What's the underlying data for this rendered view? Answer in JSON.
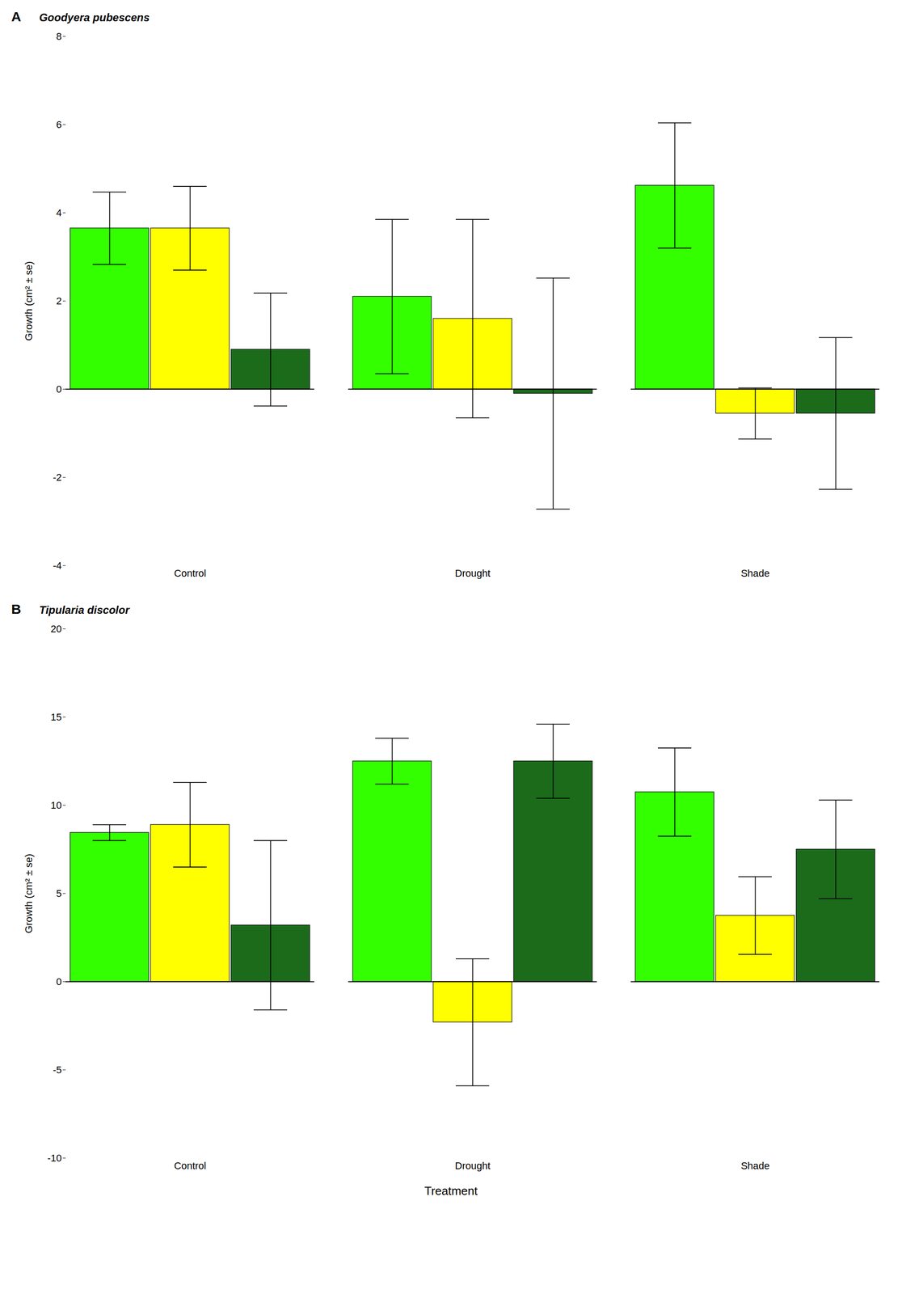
{
  "chart_data": [
    {
      "type": "bar",
      "title": "Goodyera pubescens",
      "annotations": [
        {
          "text": "A"
        }
      ],
      "y_label": "Growth (cm² ± se)",
      "categories": [
        "Control",
        "Drought",
        "Shade"
      ],
      "series": [
        {
          "color": "#33FF00",
          "values": [
            3.65,
            2.1,
            4.62
          ],
          "errors": [
            0.82,
            1.75,
            1.42
          ]
        },
        {
          "color": "#FFFF00",
          "values": [
            3.65,
            1.6,
            -0.55
          ],
          "errors": [
            0.95,
            2.25,
            0.58
          ]
        },
        {
          "color": "#1B6B1B",
          "values": [
            0.9,
            -0.1,
            -0.55
          ],
          "errors": [
            1.28,
            2.62,
            1.72
          ]
        }
      ],
      "ylim": [
        -4,
        8
      ],
      "yticks": [
        -4,
        -2,
        0,
        2,
        4,
        6,
        8
      ],
      "grid": false
    },
    {
      "type": "bar",
      "title": "Tipularia discolor",
      "annotations": [
        {
          "text": "B"
        }
      ],
      "y_label": "Growth (cm² ± se)",
      "x_label": "Treatment",
      "categories": [
        "Control",
        "Drought",
        "Shade"
      ],
      "series": [
        {
          "color": "#33FF00",
          "values": [
            8.45,
            12.5,
            10.75
          ],
          "errors": [
            0.45,
            1.3,
            2.5
          ]
        },
        {
          "color": "#FFFF00",
          "values": [
            8.9,
            -2.3,
            3.75
          ],
          "errors": [
            2.4,
            3.6,
            2.2
          ]
        },
        {
          "color": "#1B6B1B",
          "values": [
            3.2,
            12.5,
            7.5
          ],
          "errors": [
            4.8,
            2.1,
            2.8
          ]
        }
      ],
      "ylim": [
        -10,
        20
      ],
      "yticks": [
        -10,
        -5,
        0,
        5,
        10,
        15,
        20
      ],
      "grid": false
    }
  ]
}
